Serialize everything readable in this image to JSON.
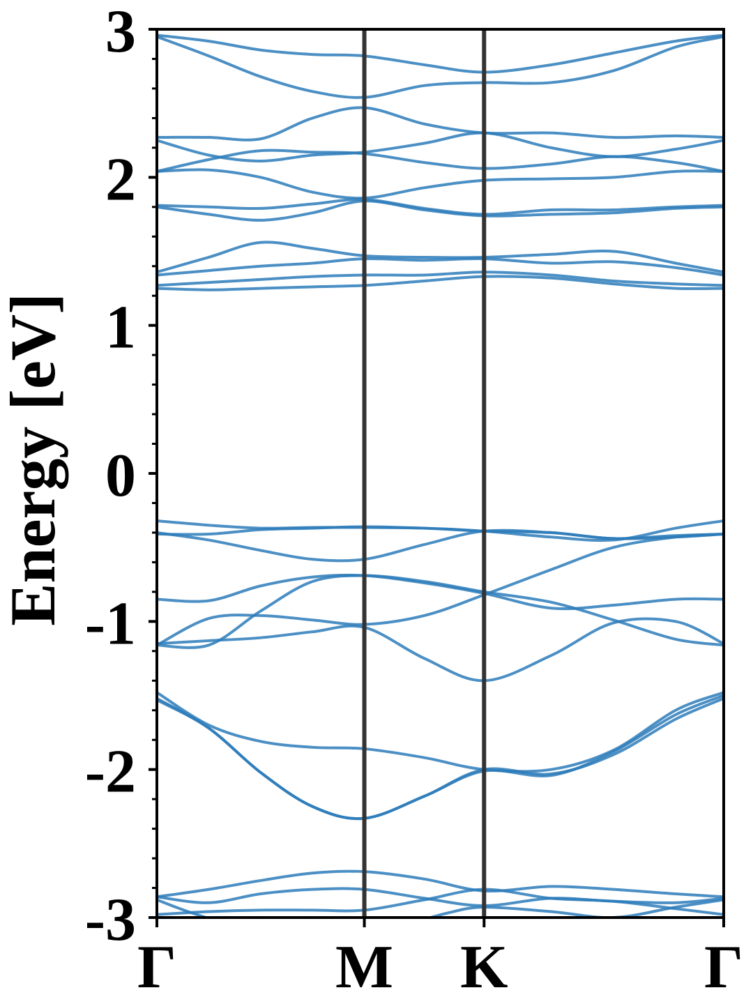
{
  "chart_data": {
    "type": "line",
    "title": "",
    "xlabel": "",
    "ylabel": "Energy [eV]",
    "ylim": [
      -3,
      3
    ],
    "y_ticks": [
      "3",
      "2",
      "1",
      "0",
      "-1",
      "-2",
      "-3"
    ],
    "y_tick_values": [
      3,
      2,
      1,
      0,
      -1,
      -2,
      -3
    ],
    "k_points": [
      {
        "label": "Γ",
        "x": 0
      },
      {
        "label": "M",
        "x": 1
      },
      {
        "label": "K",
        "x": 1.577
      },
      {
        "label": "Γ",
        "x": 2.732
      }
    ],
    "grid": false,
    "band_color": "#2b7bba",
    "vline_color": "#333333",
    "bands": [
      {
        "x": [
          0,
          0.25,
          0.5,
          0.75,
          1,
          1.29,
          1.577,
          1.9,
          2.2,
          2.5,
          2.732
        ],
        "y": [
          2.96,
          2.92,
          2.86,
          2.83,
          2.82,
          2.76,
          2.71,
          2.76,
          2.84,
          2.92,
          2.96
        ]
      },
      {
        "x": [
          0,
          0.25,
          0.5,
          0.75,
          1,
          1.29,
          1.577,
          1.9,
          2.2,
          2.5,
          2.732
        ],
        "y": [
          2.95,
          2.82,
          2.68,
          2.58,
          2.54,
          2.62,
          2.64,
          2.64,
          2.72,
          2.88,
          2.95
        ]
      },
      {
        "x": [
          0,
          0.25,
          0.5,
          0.75,
          1,
          1.29,
          1.577,
          1.9,
          2.2,
          2.5,
          2.732
        ],
        "y": [
          2.27,
          2.27,
          2.26,
          2.4,
          2.47,
          2.36,
          2.3,
          2.3,
          2.27,
          2.28,
          2.27
        ]
      },
      {
        "x": [
          0,
          0.25,
          0.5,
          0.75,
          1,
          1.29,
          1.577,
          1.9,
          2.2,
          2.5,
          2.732
        ],
        "y": [
          2.25,
          2.15,
          2.11,
          2.15,
          2.17,
          2.23,
          2.3,
          2.2,
          2.14,
          2.19,
          2.25
        ]
      },
      {
        "x": [
          0,
          0.25,
          0.5,
          0.75,
          1,
          1.29,
          1.577,
          1.9,
          2.2,
          2.5,
          2.732
        ],
        "y": [
          2.04,
          2.12,
          2.18,
          2.17,
          2.16,
          2.1,
          2.06,
          2.09,
          2.14,
          2.1,
          2.04
        ]
      },
      {
        "x": [
          0,
          0.25,
          0.5,
          0.75,
          1,
          1.29,
          1.577,
          1.9,
          2.2,
          2.5,
          2.732
        ],
        "y": [
          2.04,
          2.05,
          2.0,
          1.9,
          1.86,
          1.93,
          1.98,
          1.99,
          2.0,
          2.04,
          2.04
        ]
      },
      {
        "x": [
          0,
          0.25,
          0.5,
          0.75,
          1,
          1.29,
          1.577,
          1.9,
          2.2,
          2.5,
          2.732
        ],
        "y": [
          1.81,
          1.8,
          1.79,
          1.82,
          1.85,
          1.79,
          1.75,
          1.78,
          1.78,
          1.8,
          1.81
        ]
      },
      {
        "x": [
          0,
          0.25,
          0.5,
          0.75,
          1,
          1.29,
          1.577,
          1.9,
          2.2,
          2.5,
          2.732
        ],
        "y": [
          1.8,
          1.75,
          1.71,
          1.76,
          1.84,
          1.78,
          1.74,
          1.75,
          1.76,
          1.79,
          1.8
        ]
      },
      {
        "x": [
          0,
          0.25,
          0.5,
          0.75,
          1,
          1.29,
          1.577,
          1.9,
          2.2,
          2.5,
          2.732
        ],
        "y": [
          1.36,
          1.46,
          1.56,
          1.52,
          1.47,
          1.46,
          1.46,
          1.48,
          1.5,
          1.42,
          1.36
        ]
      },
      {
        "x": [
          0,
          0.25,
          0.5,
          0.75,
          1,
          1.29,
          1.577,
          1.9,
          2.2,
          2.5,
          2.732
        ],
        "y": [
          1.34,
          1.37,
          1.4,
          1.42,
          1.45,
          1.44,
          1.45,
          1.42,
          1.43,
          1.39,
          1.34
        ]
      },
      {
        "x": [
          0,
          0.25,
          0.5,
          0.75,
          1,
          1.29,
          1.577,
          1.9,
          2.2,
          2.5,
          2.732
        ],
        "y": [
          1.27,
          1.29,
          1.31,
          1.33,
          1.34,
          1.34,
          1.36,
          1.34,
          1.3,
          1.28,
          1.27
        ]
      },
      {
        "x": [
          0,
          0.25,
          0.5,
          0.75,
          1,
          1.29,
          1.577,
          1.9,
          2.2,
          2.5,
          2.732
        ],
        "y": [
          1.25,
          1.24,
          1.25,
          1.26,
          1.27,
          1.3,
          1.33,
          1.32,
          1.28,
          1.25,
          1.25
        ]
      },
      {
        "x": [
          0,
          0.25,
          0.5,
          0.75,
          1,
          1.29,
          1.577,
          1.9,
          2.2,
          2.5,
          2.732
        ],
        "y": [
          -0.32,
          -0.35,
          -0.37,
          -0.365,
          -0.365,
          -0.37,
          -0.39,
          -0.43,
          -0.45,
          -0.37,
          -0.32
        ]
      },
      {
        "x": [
          0,
          0.25,
          0.5,
          0.75,
          1,
          1.29,
          1.577,
          1.9,
          2.2,
          2.5,
          2.732
        ],
        "y": [
          -0.41,
          -0.41,
          -0.38,
          -0.37,
          -0.36,
          -0.37,
          -0.39,
          -0.4,
          -0.44,
          -0.42,
          -0.41
        ]
      },
      {
        "x": [
          0,
          0.25,
          0.5,
          0.75,
          1,
          1.29,
          1.577,
          1.9,
          2.2,
          2.5,
          2.732
        ],
        "y": [
          -0.4,
          -0.45,
          -0.52,
          -0.58,
          -0.58,
          -0.48,
          -0.39,
          -0.4,
          -0.44,
          -0.43,
          -0.41
        ]
      },
      {
        "x": [
          0,
          0.25,
          0.5,
          0.75,
          1,
          1.29,
          1.577,
          1.9,
          2.2,
          2.5,
          2.732
        ],
        "y": [
          -0.85,
          -0.86,
          -0.76,
          -0.7,
          -0.69,
          -0.74,
          -0.81,
          -0.91,
          -0.89,
          -0.85,
          -0.85
        ]
      },
      {
        "x": [
          0,
          0.25,
          0.5,
          0.75,
          1,
          1.29,
          1.577,
          1.9,
          2.2,
          2.5,
          2.732
        ],
        "y": [
          -1.16,
          -0.98,
          -0.96,
          -0.99,
          -1.02,
          -0.96,
          -0.82,
          -0.65,
          -0.5,
          -0.43,
          -0.41
        ]
      },
      {
        "x": [
          0,
          0.25,
          0.5,
          0.75,
          1,
          1.29,
          1.577,
          1.9,
          2.2,
          2.5,
          2.732
        ],
        "y": [
          -1.15,
          -1.13,
          -1.11,
          -1.07,
          -1.04,
          -1.25,
          -1.4,
          -1.23,
          -1.01,
          -1.0,
          -1.15
        ]
      },
      {
        "x": [
          0,
          0.25,
          0.5,
          0.75,
          1,
          1.29,
          1.577,
          1.9,
          2.2,
          2.5,
          2.732
        ],
        "y": [
          -1.16,
          -1.16,
          -0.93,
          -0.73,
          -0.69,
          -0.73,
          -0.8,
          -0.87,
          -0.99,
          -1.12,
          -1.16
        ]
      },
      {
        "x": [
          0,
          0.25,
          0.5,
          0.75,
          1,
          1.29,
          1.577,
          1.9,
          2.2,
          2.5,
          2.732
        ],
        "y": [
          -1.48,
          -1.7,
          -1.81,
          -1.85,
          -1.86,
          -1.92,
          -2.0,
          -2.0,
          -1.87,
          -1.6,
          -1.48
        ]
      },
      {
        "x": [
          0,
          0.25,
          0.5,
          0.75,
          1,
          1.29,
          1.577,
          1.9,
          2.2,
          2.5,
          2.732
        ],
        "y": [
          -1.52,
          -1.72,
          -2.02,
          -2.25,
          -2.33,
          -2.18,
          -2.0,
          -2.03,
          -1.9,
          -1.66,
          -1.52
        ]
      },
      {
        "x": [
          0,
          0.25,
          0.5,
          0.75,
          1,
          1.29,
          1.577,
          1.9,
          2.2,
          2.5,
          2.732
        ],
        "y": [
          -1.53,
          -1.72,
          -2.02,
          -2.25,
          -2.33,
          -2.18,
          -2.01,
          -2.04,
          -1.88,
          -1.63,
          -1.5
        ]
      },
      {
        "x": [
          0,
          0.25,
          0.5,
          0.75,
          1,
          1.29,
          1.577,
          1.9,
          2.2,
          2.5,
          2.732
        ],
        "y": [
          -2.86,
          -2.81,
          -2.75,
          -2.7,
          -2.69,
          -2.74,
          -2.82,
          -2.79,
          -2.81,
          -2.84,
          -2.86
        ]
      },
      {
        "x": [
          0,
          0.25,
          0.5,
          0.75,
          1,
          1.29,
          1.577,
          1.9,
          2.2,
          2.5,
          2.732
        ],
        "y": [
          -2.86,
          -2.9,
          -2.84,
          -2.81,
          -2.81,
          -2.87,
          -2.92,
          -2.87,
          -2.89,
          -2.9,
          -2.87
        ]
      },
      {
        "x": [
          0,
          0.25,
          0.5,
          0.75,
          1,
          1.29,
          1.577,
          1.9,
          2.2,
          2.5,
          2.732
        ],
        "y": [
          -2.98,
          -2.96,
          -2.95,
          -2.95,
          -2.95,
          -2.88,
          -2.81,
          -2.87,
          -2.89,
          -2.94,
          -2.98
        ]
      },
      {
        "x": [
          0,
          0.15,
          0.35
        ],
        "y": [
          -2.88,
          -2.96,
          -3.05
        ]
      },
      {
        "x": [
          1.2,
          1.4,
          1.577,
          1.9,
          2.2,
          2.5,
          2.732
        ],
        "y": [
          -3.05,
          -2.97,
          -2.93,
          -2.96,
          -3.0,
          -2.93,
          -2.88
        ]
      }
    ]
  }
}
